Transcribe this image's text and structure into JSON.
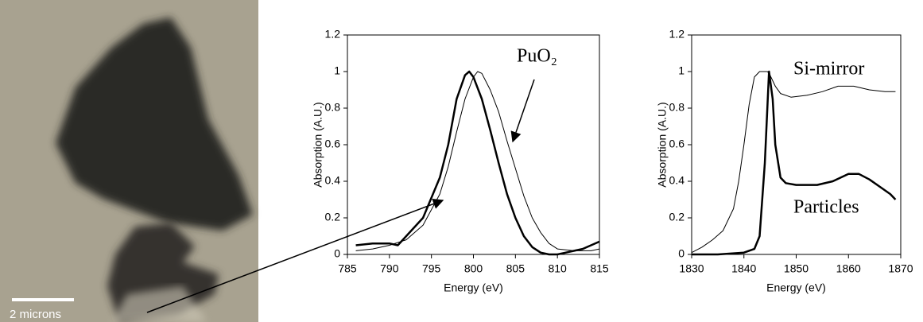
{
  "image": {
    "scale_bar_label": "2 microns"
  },
  "chart_data": [
    {
      "type": "line",
      "xlabel": "Energy (eV)",
      "ylabel": "Absorption (A.U.)",
      "xlim": [
        785,
        815
      ],
      "xticks": [
        785,
        790,
        795,
        800,
        805,
        810,
        815
      ],
      "ylim": [
        0,
        1.2
      ],
      "yticks": [
        0,
        0.2,
        0.4,
        0.6,
        0.8,
        1,
        1.2
      ],
      "series": [
        {
          "color": "#000000",
          "width": 2.5,
          "x": [
            786,
            788,
            790,
            791,
            792,
            794,
            796,
            797,
            798,
            799,
            799.5,
            800,
            801,
            802,
            803,
            804,
            805,
            806,
            807,
            808,
            809,
            810,
            811,
            812,
            813,
            814,
            815
          ],
          "values": [
            0.05,
            0.06,
            0.06,
            0.05,
            0.1,
            0.2,
            0.42,
            0.6,
            0.85,
            0.98,
            1.0,
            0.97,
            0.85,
            0.68,
            0.5,
            0.33,
            0.2,
            0.1,
            0.04,
            0.01,
            0.0,
            0.0,
            0.01,
            0.02,
            0.03,
            0.05,
            0.07
          ]
        },
        {
          "name": "PuO₂",
          "color": "#000000",
          "width": 1,
          "x": [
            786,
            788,
            790,
            792,
            794,
            796,
            797,
            798,
            799,
            800,
            800.5,
            801,
            802,
            803,
            804,
            805,
            806,
            807,
            808,
            809,
            810,
            812,
            814,
            815
          ],
          "values": [
            0.02,
            0.03,
            0.05,
            0.08,
            0.16,
            0.33,
            0.48,
            0.67,
            0.85,
            0.97,
            1.0,
            0.99,
            0.9,
            0.78,
            0.62,
            0.47,
            0.32,
            0.2,
            0.12,
            0.06,
            0.03,
            0.02,
            0.02,
            0.03
          ]
        }
      ]
    },
    {
      "type": "line",
      "xlabel": "Energy (eV)",
      "ylabel": "Absorption (A.U.)",
      "xlim": [
        1830,
        1870
      ],
      "xticks": [
        1830,
        1840,
        1850,
        1860,
        1870
      ],
      "ylim": [
        0,
        1.2
      ],
      "yticks": [
        0,
        0.2,
        0.4,
        0.6,
        0.8,
        1,
        1.2
      ],
      "series": [
        {
          "name": "Si-mirror",
          "color": "#000000",
          "width": 1,
          "x": [
            1830,
            1832,
            1834,
            1836,
            1838,
            1839,
            1840,
            1841,
            1842,
            1843,
            1844,
            1844.5,
            1845,
            1846,
            1847,
            1849,
            1852,
            1855,
            1858,
            1861,
            1864,
            1867,
            1869
          ],
          "values": [
            0.01,
            0.04,
            0.08,
            0.13,
            0.25,
            0.4,
            0.6,
            0.82,
            0.97,
            1.0,
            1.0,
            1.0,
            0.98,
            0.92,
            0.88,
            0.86,
            0.87,
            0.89,
            0.92,
            0.92,
            0.9,
            0.89,
            0.89
          ]
        },
        {
          "name": "Particles",
          "color": "#000000",
          "width": 2.5,
          "x": [
            1830,
            1835,
            1840,
            1842,
            1843,
            1844,
            1844.8,
            1845.5,
            1846,
            1847,
            1848,
            1850,
            1854,
            1857,
            1860,
            1862,
            1864,
            1866,
            1868,
            1869
          ],
          "values": [
            0,
            0,
            0.01,
            0.03,
            0.1,
            0.5,
            1.0,
            0.85,
            0.6,
            0.42,
            0.39,
            0.38,
            0.38,
            0.4,
            0.44,
            0.44,
            0.41,
            0.37,
            0.33,
            0.3
          ]
        }
      ]
    }
  ]
}
